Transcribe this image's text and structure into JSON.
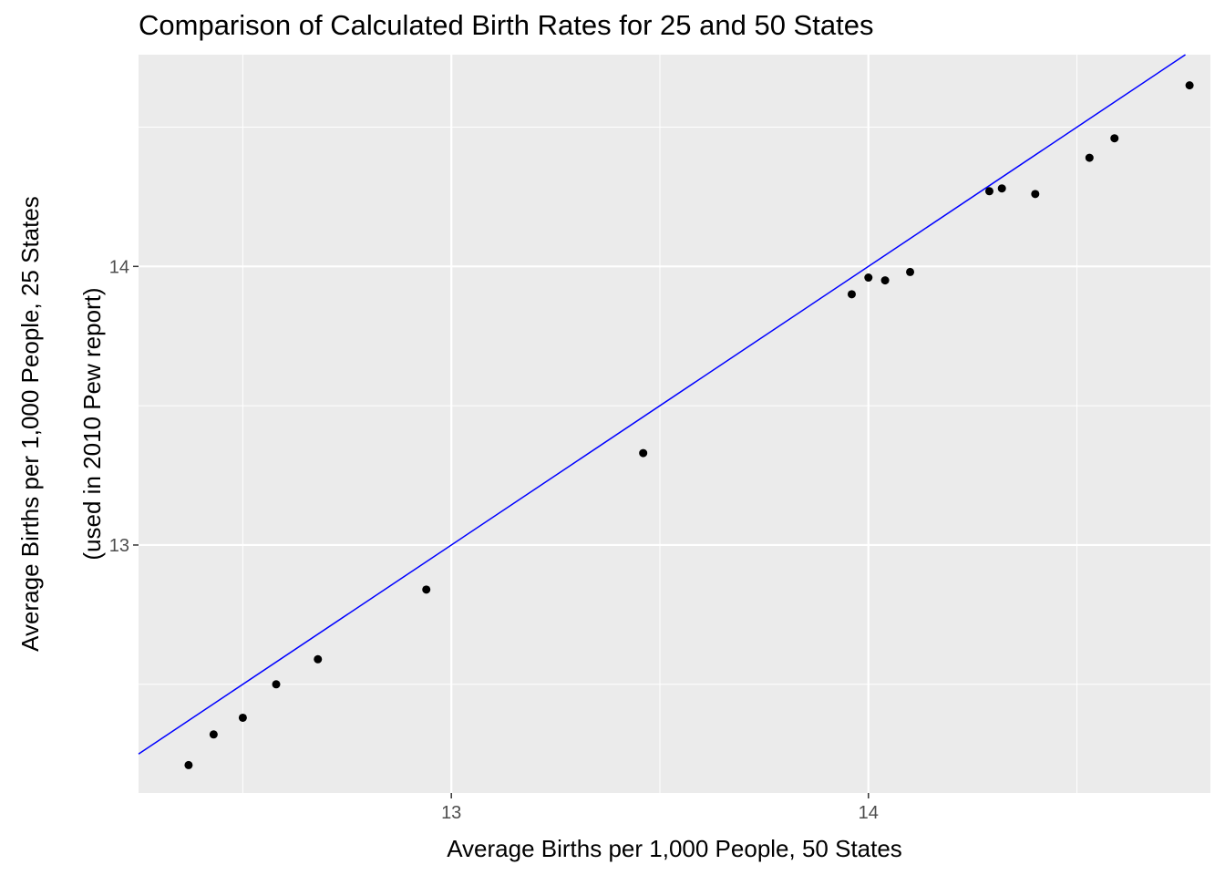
{
  "chart_data": {
    "type": "scatter",
    "title": "Comparison of Calculated Birth Rates for 25 and 50 States",
    "xlabel": "Average Births per 1,000 People, 50 States",
    "ylabel_lines": [
      "Average Births per 1,000 People, 25 States",
      "(used in 2010 Pew report)"
    ],
    "xlim": [
      12.25,
      14.82
    ],
    "ylim": [
      12.11,
      14.76
    ],
    "x_ticks": [
      13,
      14
    ],
    "y_ticks": [
      13,
      14
    ],
    "grid": true,
    "panel_background": "#ebebeb",
    "point_color": "#000000",
    "reference_line": {
      "type": "y=x",
      "color": "#0000ff"
    },
    "points": [
      {
        "x": 12.37,
        "y": 12.21
      },
      {
        "x": 12.43,
        "y": 12.32
      },
      {
        "x": 12.5,
        "y": 12.38
      },
      {
        "x": 12.58,
        "y": 12.5
      },
      {
        "x": 12.68,
        "y": 12.59
      },
      {
        "x": 12.94,
        "y": 12.84
      },
      {
        "x": 13.46,
        "y": 13.33
      },
      {
        "x": 13.96,
        "y": 13.9
      },
      {
        "x": 14.0,
        "y": 13.96
      },
      {
        "x": 14.04,
        "y": 13.95
      },
      {
        "x": 14.1,
        "y": 13.98
      },
      {
        "x": 14.29,
        "y": 14.27
      },
      {
        "x": 14.32,
        "y": 14.28
      },
      {
        "x": 14.4,
        "y": 14.26
      },
      {
        "x": 14.53,
        "y": 14.39
      },
      {
        "x": 14.59,
        "y": 14.46
      },
      {
        "x": 14.77,
        "y": 14.65
      }
    ]
  }
}
